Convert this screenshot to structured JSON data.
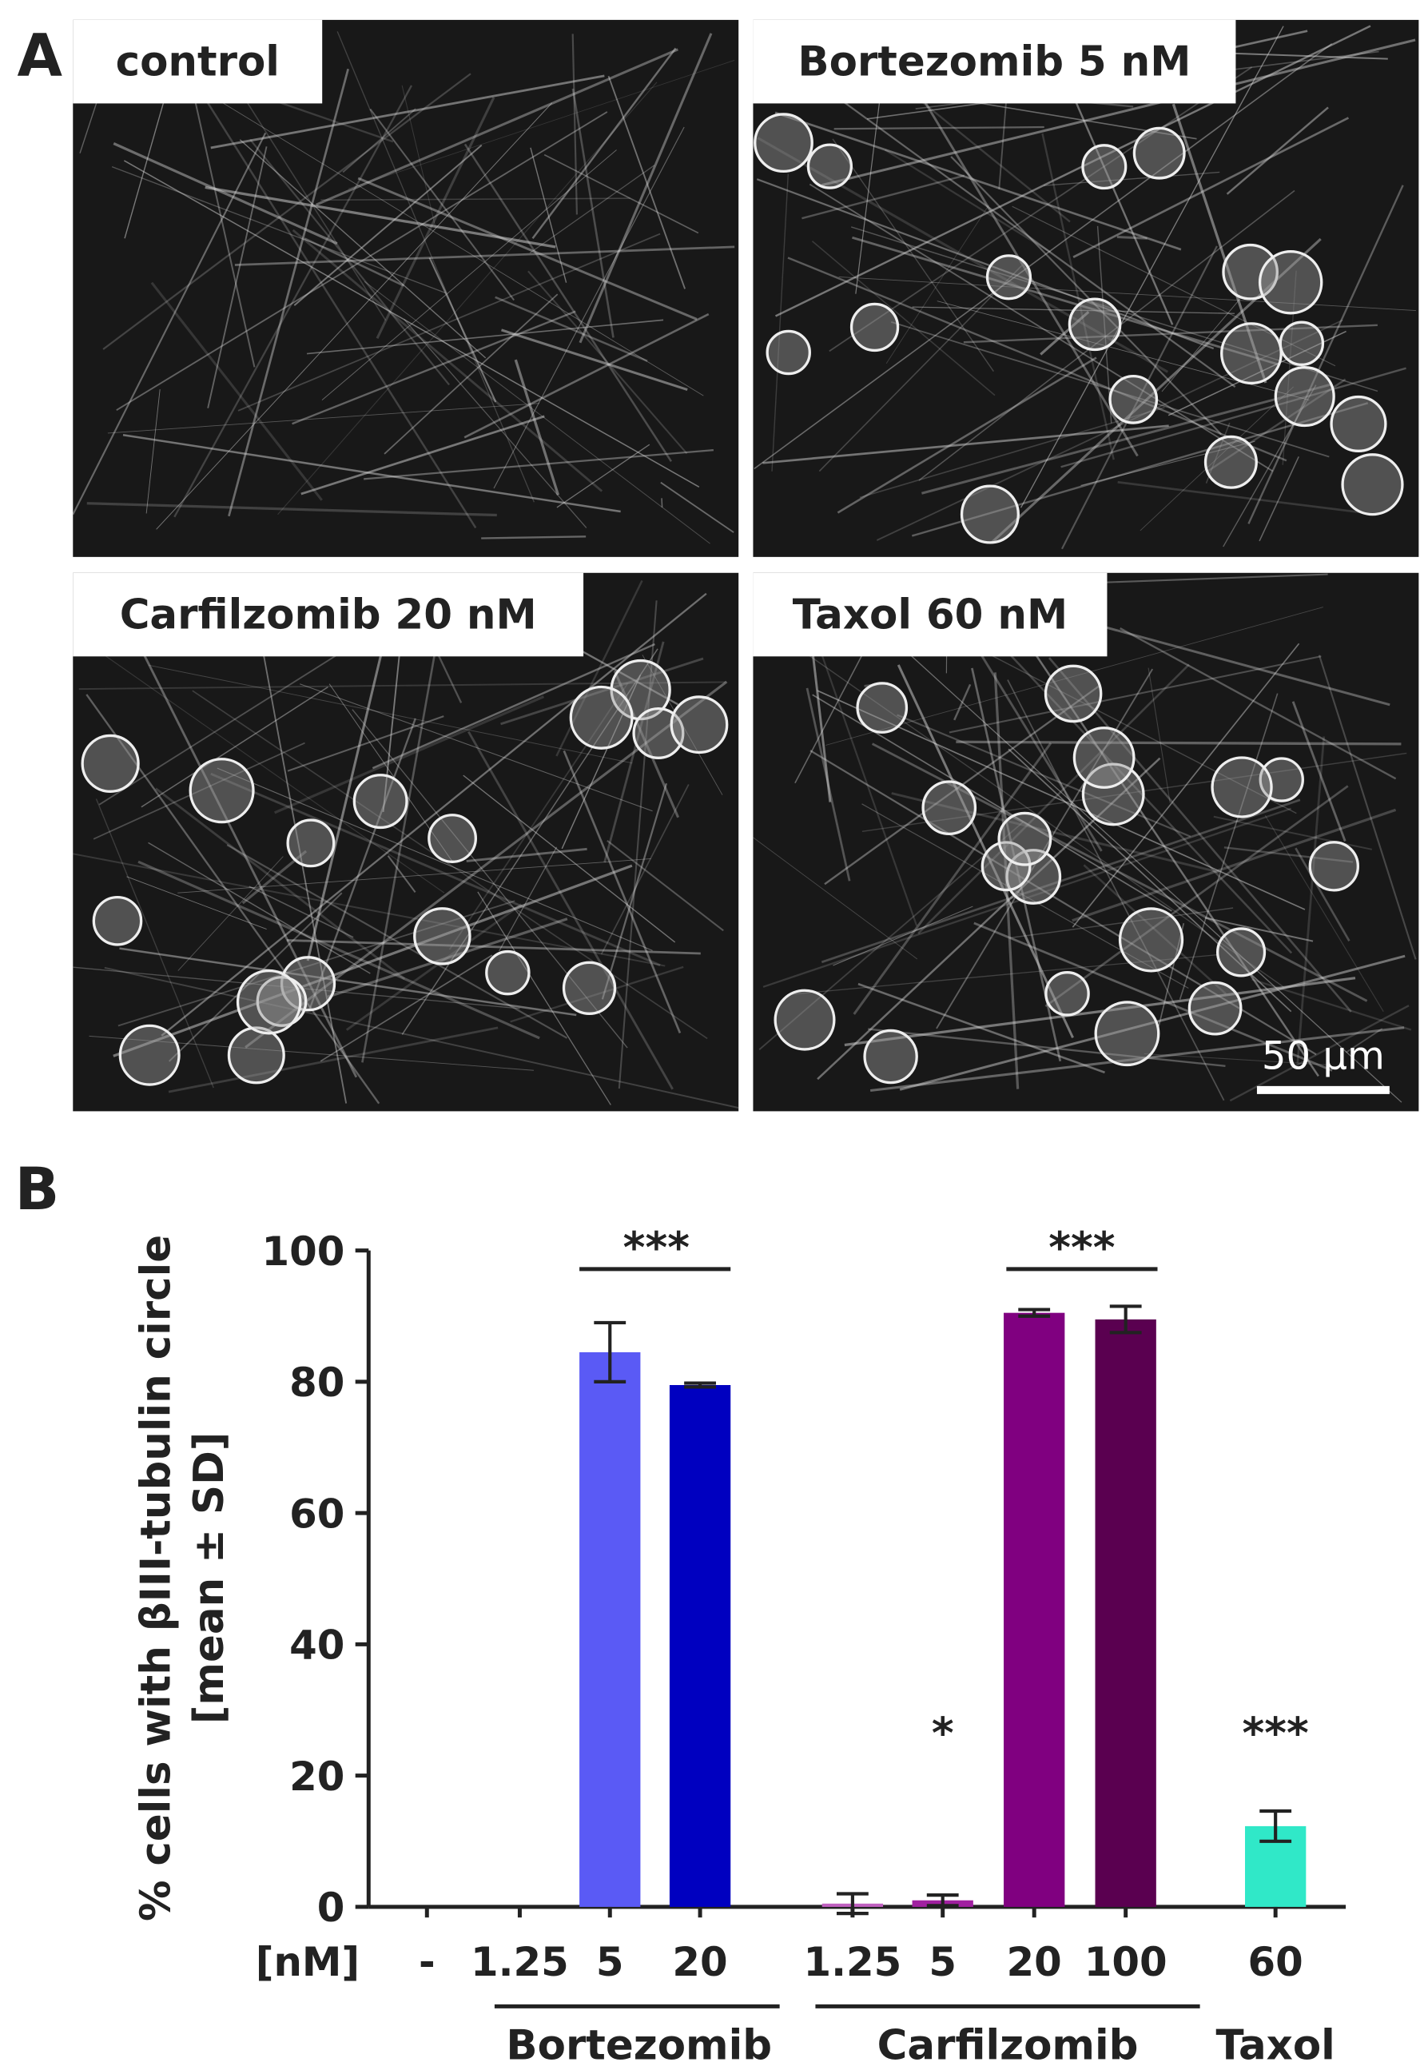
{
  "panel_labels": [
    "A",
    "B"
  ],
  "micrographs": {
    "panels": [
      {
        "label": "control"
      },
      {
        "label": "Bortezomib 5 nM"
      },
      {
        "label": "Carfilzomib 20 nM"
      },
      {
        "label": "Taxol 60 nM"
      }
    ],
    "scale_bar": "50 µm"
  },
  "chart_data": {
    "type": "bar",
    "ylabel": [
      "% cells with βIII-tubulin circle",
      "[mean ± SD]"
    ],
    "unit_label": "[nM]",
    "categories": [
      "-",
      "1.25",
      "5",
      "20",
      "1.25",
      "5",
      "20",
      "100",
      "60"
    ],
    "values": [
      0,
      0,
      84.5,
      79.5,
      0.5,
      1,
      90.5,
      89.5,
      12.3
    ],
    "errors": [
      0,
      0,
      4.5,
      0.3,
      1.5,
      0.8,
      0.5,
      2,
      2.3
    ],
    "colors": [
      "#5a5af5",
      "#5a5af5",
      "#5a5af5",
      "#0000c0",
      "#c060c0",
      "#a020a0",
      "#800080",
      "#5a0050",
      "#30e8c8"
    ],
    "groups": [
      "Bortezomib",
      "Carfilzomib",
      "Taxol"
    ],
    "annotations": [
      "***",
      "*",
      "***",
      "***"
    ],
    "ylim": [
      0,
      100
    ],
    "yticks": [
      0,
      20,
      40,
      60,
      80,
      100
    ]
  }
}
